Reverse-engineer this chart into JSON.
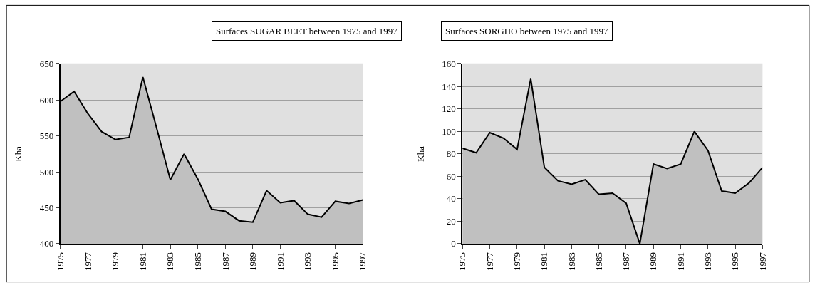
{
  "chart_data": [
    {
      "type": "area",
      "title": "Surfaces SUGAR BEET between 1975 and 1997",
      "ylabel": "Kha",
      "categories": [
        "1975",
        null,
        "1977",
        null,
        "1979",
        null,
        "1981",
        null,
        "1983",
        null,
        "1985",
        null,
        "1987",
        null,
        "1989",
        null,
        "1991",
        null,
        "1993",
        null,
        "1995",
        null,
        "1997"
      ],
      "values": [
        598,
        612,
        581,
        556,
        545,
        548,
        632,
        561,
        489,
        525,
        490,
        448,
        445,
        432,
        430,
        474,
        457,
        460,
        441,
        437,
        459,
        456,
        461
      ],
      "color": "#c0c0c0",
      "ylim": [
        400,
        650
      ],
      "yticks": [
        400,
        450,
        500,
        550,
        600,
        650
      ],
      "grid": "y"
    },
    {
      "type": "area",
      "title": "Surfaces SORGHO between 1975 and 1997",
      "ylabel": "Kha",
      "categories": [
        "1975",
        null,
        "1977",
        null,
        "1979",
        null,
        "1981",
        null,
        "1983",
        null,
        "1985",
        null,
        "1987",
        null,
        "1989",
        null,
        "1991",
        null,
        "1993",
        null,
        "1995",
        null,
        "1997"
      ],
      "values": [
        85,
        81,
        99,
        94,
        84,
        147,
        68,
        56,
        53,
        57,
        44,
        45,
        36,
        0,
        71,
        67,
        71,
        100,
        83,
        47,
        45,
        54,
        68
      ],
      "color": "#c0c0c0",
      "ylim": [
        0,
        160
      ],
      "yticks": [
        0,
        20,
        40,
        60,
        80,
        100,
        120,
        140,
        160
      ],
      "grid": "y"
    }
  ]
}
